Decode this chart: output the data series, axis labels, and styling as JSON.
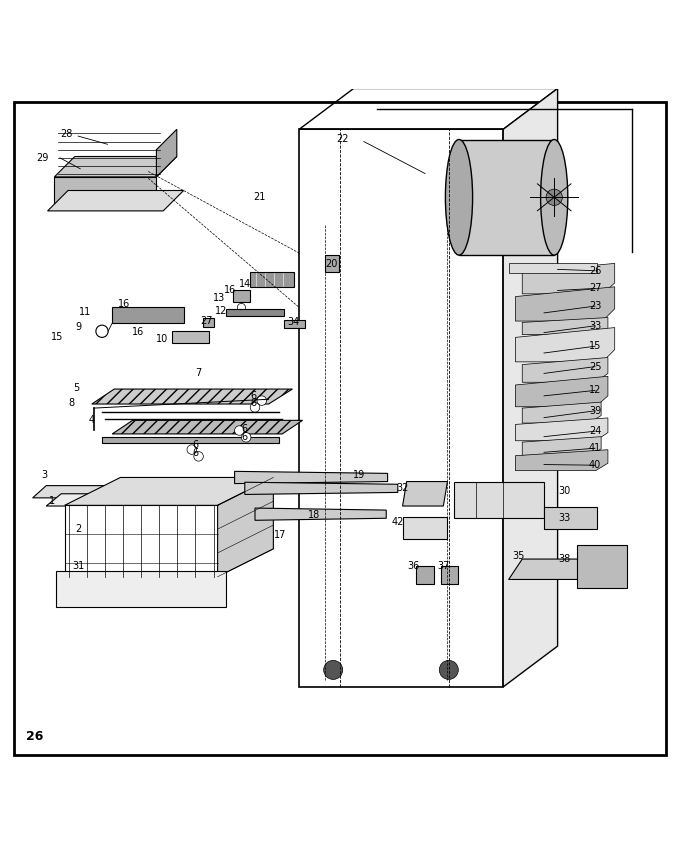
{
  "title": "",
  "page_number": "26",
  "background_color": "#ffffff",
  "border_color": "#000000",
  "line_color": "#000000",
  "text_color": "#000000",
  "figsize": [
    6.8,
    8.57
  ],
  "dpi": 100
}
